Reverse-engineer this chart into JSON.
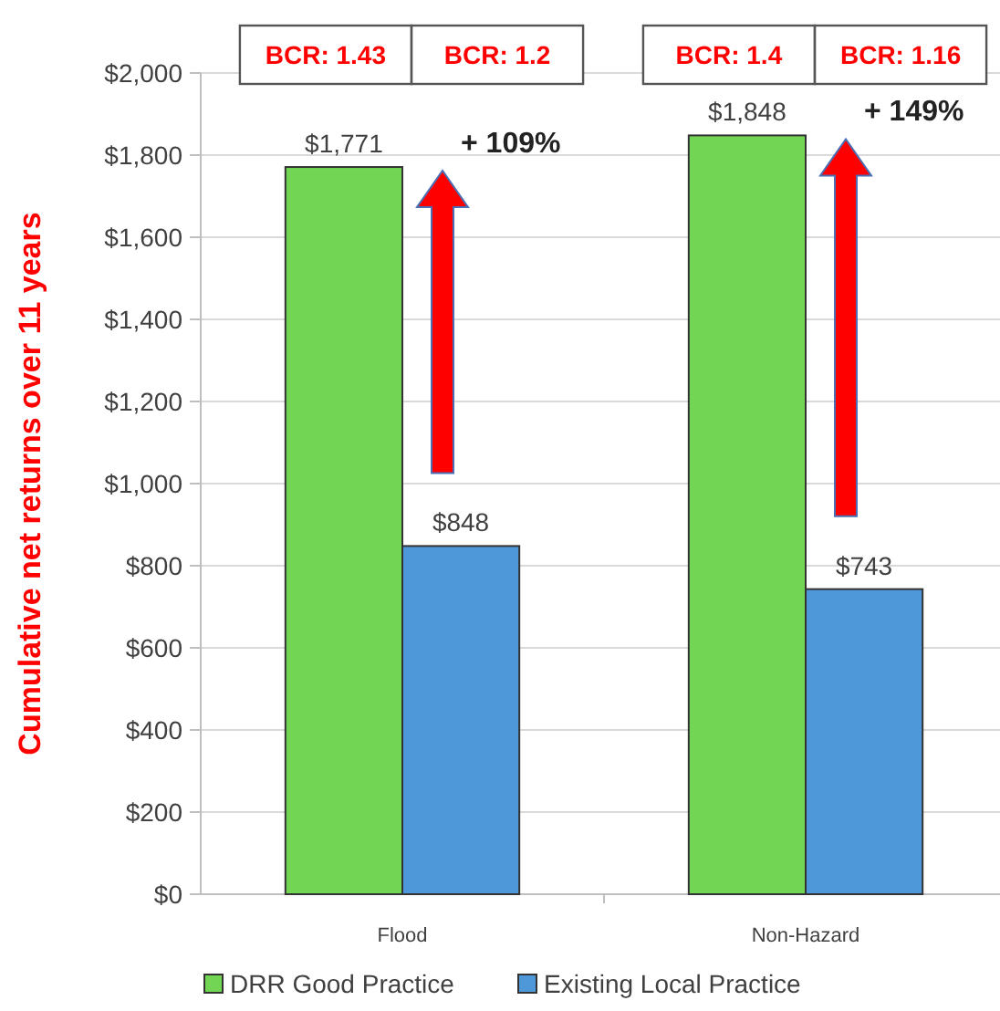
{
  "chart_data": {
    "type": "bar",
    "ylabel": "Cumulative net returns over 11 years",
    "categories": [
      "Flood",
      "Non-Hazard"
    ],
    "series": [
      {
        "name": "DRR Good Practice",
        "color": "#72d654",
        "values": [
          1771,
          1848
        ],
        "value_labels": [
          "$1,771",
          "$1,848"
        ]
      },
      {
        "name": "Existing Local Practice",
        "color": "#4e97d9",
        "values": [
          848,
          743
        ],
        "value_labels": [
          "$848",
          "$743"
        ]
      }
    ],
    "ylim": [
      0,
      2000
    ],
    "yticks": [
      {
        "value": 0,
        "label": "$0"
      },
      {
        "value": 200,
        "label": "$200"
      },
      {
        "value": 400,
        "label": "$400"
      },
      {
        "value": 600,
        "label": "$600"
      },
      {
        "value": 800,
        "label": "$800"
      },
      {
        "value": 1000,
        "label": "$1,000"
      },
      {
        "value": 1200,
        "label": "$1,200"
      },
      {
        "value": 1400,
        "label": "$1,400"
      },
      {
        "value": 1600,
        "label": "$1,600"
      },
      {
        "value": 1800,
        "label": "$1,800"
      },
      {
        "value": 2000,
        "label": "$2,000"
      }
    ],
    "grid": "y",
    "legend": "bottom",
    "annotations": [
      "BCR: 1.43",
      "BCR: 1.2",
      "BCR: 1.4",
      "BCR: 1.16",
      "+ 109%",
      "+ 149%"
    ]
  }
}
